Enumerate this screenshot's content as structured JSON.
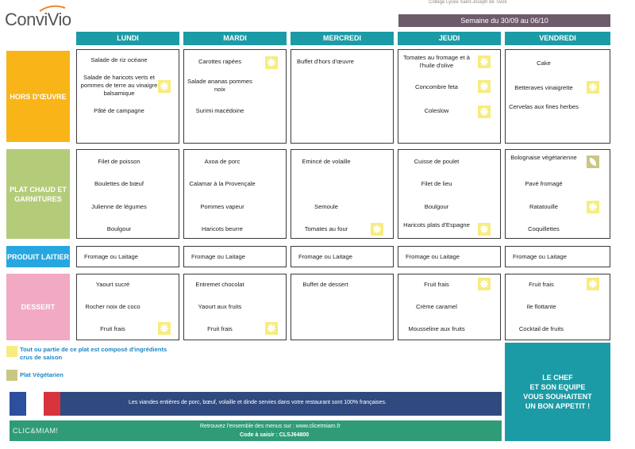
{
  "header": {
    "logo": "ConviVio",
    "top_line": "Collège Lycée Saint-Joseph de Tivoli",
    "week": "Semaine du 30/09 au 06/10"
  },
  "days": [
    "LUNDI",
    "MARDI",
    "MERCREDI",
    "JEUDI",
    "VENDREDI"
  ],
  "categories": {
    "hors": "HORS D'ŒUVRE",
    "plat": "PLAT CHAUD ET GARNITURES",
    "lait": "PRODUIT LAITIER",
    "dessert": "DESSERT"
  },
  "menu": {
    "hors": [
      [
        "Salade de riz océane",
        "Salade de haricots verts et pommes de terre au vinaigre balsamique",
        "Pâté de campagne"
      ],
      [
        "Carottes rapées",
        "Salade ananas pommes noix",
        "Surimi macédoine"
      ],
      [
        "Buffet d'hors d'œuvre"
      ],
      [
        "Tomates au fromage et à l'huile d'olive",
        "Concombre feta",
        "Coleslow"
      ],
      [
        "Cake",
        "Betteraves vinaigrette",
        "Cervelas aux fines herbes"
      ]
    ],
    "plat": [
      [
        "Filet de poisson",
        "Boulettes de bœuf",
        "Julienne de légumes",
        "Boulgour"
      ],
      [
        "Axoa de porc",
        "Calamar à la Provençale",
        "Pommes vapeur",
        "Haricots beurre"
      ],
      [
        "Emincé de volaille",
        "Semoule",
        "Tomates au four"
      ],
      [
        "Cuisse de poulet",
        "Filet de lieu",
        "Boulgour",
        "Haricots plats d'Espagne"
      ],
      [
        "Bolognaise végétarienne",
        "Pavé fromagé",
        "Ratatouille",
        "Coquillettes"
      ]
    ],
    "lait": [
      "Fromage ou Laitage",
      "Fromage ou Laitage",
      "Fromage ou Laitage",
      "Fromage ou Laitage",
      "Fromage ou Laitage"
    ],
    "dessert": [
      [
        "Yaourt sucré",
        "Rocher noix de coco",
        "Fruit frais"
      ],
      [
        "Entremet chocolat",
        "Yaourt aux fruits",
        "Fruit frais"
      ],
      [
        "Buffet de dessert"
      ],
      [
        "Fruit frais",
        "Crème caramel",
        "Mousseline aux fruits"
      ],
      [
        "Fruit frais",
        "Ile flottante",
        "Cocktail de fruits"
      ]
    ]
  },
  "legend": {
    "seasonal": "Tout ou partie de ce plat est composé d'ingrédients crus de saison",
    "vegetarian": "Plat Végétarien"
  },
  "chef": [
    "LE CHEF",
    "ET SON EQUIPE",
    "VOUS SOUHAITENT",
    "UN BON APPETIT !"
  ],
  "banner": {
    "meat": "Les viandes entières de porc, bœuf, volaille et dinde servies dans votre restaurant sont 100% françaises.",
    "site": "Retrouvez l'ensemble des menus sur : www.clicetmiam.fr",
    "code": "Code à saisir : CLSJ64800",
    "green_logo": "CLIC&MIAM!"
  },
  "colors": {
    "teal": "#1b9ba5",
    "orange": "#f9b517",
    "green": "#b4cb7a",
    "blue": "#27a7e0",
    "pink": "#f2a9c4",
    "week_bar": "#6d5a6a"
  }
}
